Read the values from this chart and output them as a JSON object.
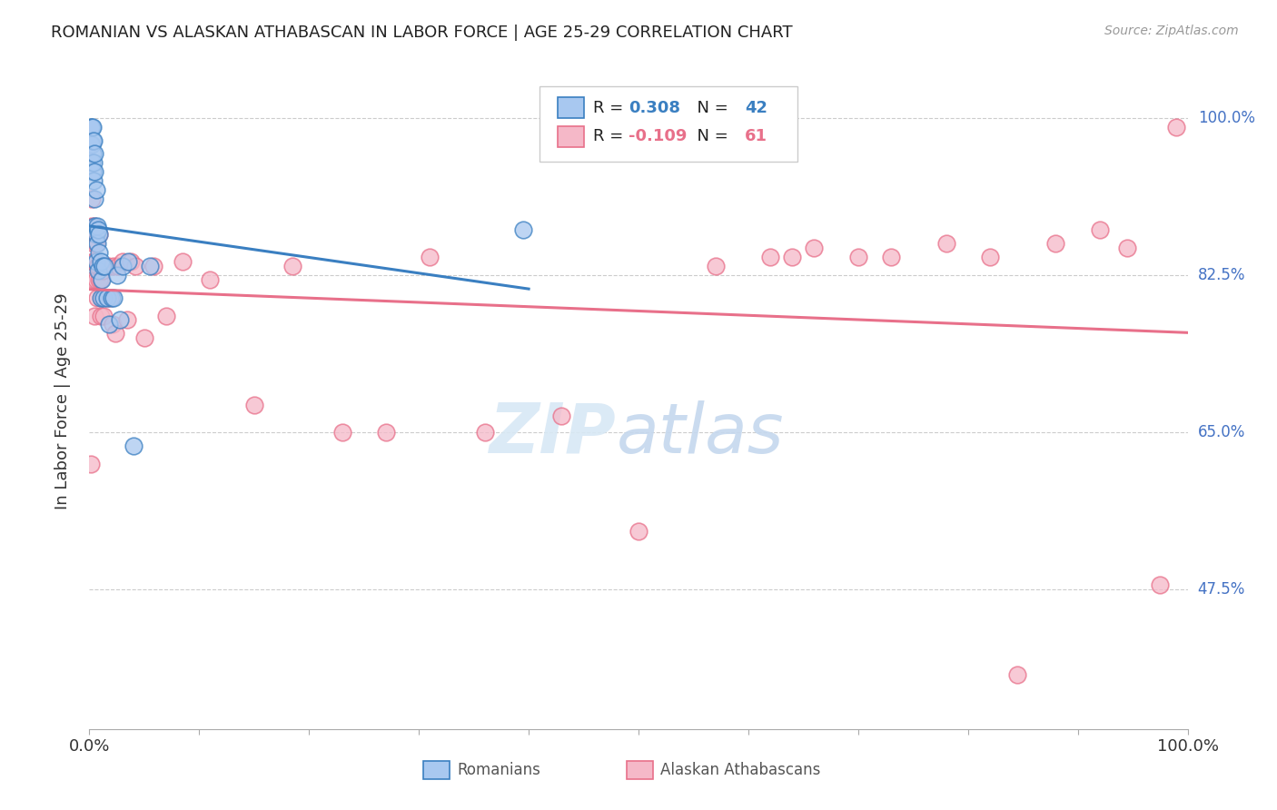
{
  "title": "ROMANIAN VS ALASKAN ATHABASCAN IN LABOR FORCE | AGE 25-29 CORRELATION CHART",
  "source": "Source: ZipAtlas.com",
  "ylabel": "In Labor Force | Age 25-29",
  "ytick_labels": [
    "100.0%",
    "82.5%",
    "65.0%",
    "47.5%"
  ],
  "ytick_values": [
    1.0,
    0.825,
    0.65,
    0.475
  ],
  "xlim": [
    0.0,
    1.0
  ],
  "ylim": [
    0.32,
    1.05
  ],
  "legend_r_romanian": "0.308",
  "legend_n_romanian": "42",
  "legend_r_athabascan": "-0.109",
  "legend_n_athabascan": "61",
  "romanian_color": "#A8C8F0",
  "athabascan_color": "#F5B8C8",
  "romanian_line_color": "#3A7FC1",
  "athabascan_line_color": "#E8708A",
  "background_color": "#FFFFFF",
  "romanian_x": [
    0.001,
    0.001,
    0.002,
    0.002,
    0.002,
    0.003,
    0.003,
    0.003,
    0.003,
    0.004,
    0.004,
    0.004,
    0.005,
    0.005,
    0.005,
    0.005,
    0.006,
    0.006,
    0.006,
    0.007,
    0.007,
    0.008,
    0.008,
    0.009,
    0.009,
    0.01,
    0.01,
    0.011,
    0.012,
    0.013,
    0.014,
    0.016,
    0.018,
    0.02,
    0.022,
    0.025,
    0.028,
    0.03,
    0.035,
    0.04,
    0.055,
    0.395
  ],
  "romanian_y": [
    0.97,
    0.99,
    0.95,
    0.97,
    0.99,
    0.94,
    0.96,
    0.975,
    0.99,
    0.93,
    0.95,
    0.975,
    0.88,
    0.91,
    0.94,
    0.96,
    0.84,
    0.87,
    0.92,
    0.86,
    0.88,
    0.83,
    0.875,
    0.85,
    0.87,
    0.8,
    0.84,
    0.82,
    0.835,
    0.8,
    0.835,
    0.8,
    0.77,
    0.8,
    0.8,
    0.825,
    0.775,
    0.835,
    0.84,
    0.635,
    0.835,
    0.875
  ],
  "athabascan_x": [
    0.001,
    0.002,
    0.002,
    0.003,
    0.003,
    0.004,
    0.004,
    0.005,
    0.005,
    0.005,
    0.006,
    0.006,
    0.007,
    0.007,
    0.008,
    0.009,
    0.009,
    0.01,
    0.01,
    0.011,
    0.012,
    0.013,
    0.014,
    0.016,
    0.017,
    0.019,
    0.021,
    0.022,
    0.024,
    0.026,
    0.03,
    0.034,
    0.038,
    0.042,
    0.05,
    0.058,
    0.07,
    0.085,
    0.11,
    0.15,
    0.185,
    0.23,
    0.27,
    0.31,
    0.36,
    0.43,
    0.5,
    0.57,
    0.62,
    0.64,
    0.66,
    0.7,
    0.73,
    0.78,
    0.82,
    0.845,
    0.88,
    0.92,
    0.945,
    0.975,
    0.99
  ],
  "athabascan_y": [
    0.615,
    0.88,
    0.91,
    0.84,
    0.87,
    0.82,
    0.86,
    0.78,
    0.84,
    0.88,
    0.82,
    0.86,
    0.8,
    0.835,
    0.835,
    0.82,
    0.87,
    0.78,
    0.82,
    0.8,
    0.83,
    0.78,
    0.835,
    0.8,
    0.835,
    0.8,
    0.77,
    0.835,
    0.76,
    0.835,
    0.84,
    0.775,
    0.84,
    0.835,
    0.755,
    0.835,
    0.78,
    0.84,
    0.82,
    0.68,
    0.835,
    0.65,
    0.65,
    0.845,
    0.65,
    0.668,
    0.54,
    0.835,
    0.845,
    0.845,
    0.855,
    0.845,
    0.845,
    0.86,
    0.845,
    0.38,
    0.86,
    0.875,
    0.855,
    0.48,
    0.99
  ]
}
